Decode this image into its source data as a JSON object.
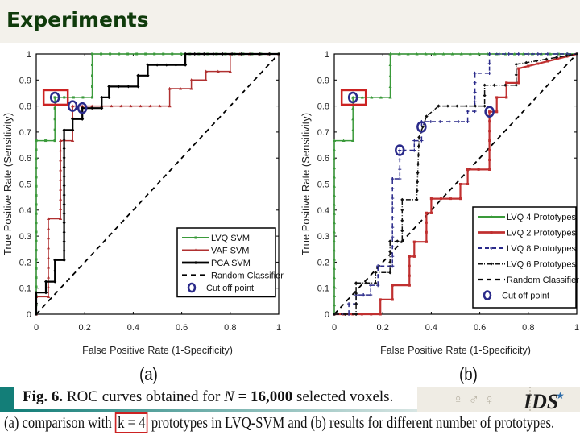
{
  "slide": {
    "title": "Experiments",
    "panel_labels": [
      "(a)",
      "(b)"
    ],
    "caption": {
      "line1_bold": "Fig. 6.",
      "line1_rest": " ROC curves obtained for ",
      "line1_var": "N",
      "line1_eq": " = ",
      "line1_num": "16,000",
      "line1_end": " selected voxels.",
      "line2_pre": "(a) comparison with ",
      "line2_highlight": "k = 4",
      "line2_post": " prototypes in LVQ-SVM and (b) results for different number of prototypes."
    },
    "logo_text": "IDS",
    "highlight_color": "#cc2222",
    "title_color": "#0f3b0b",
    "accent_teal": "#137e78"
  },
  "chart_data": [
    {
      "type": "line",
      "panel": "(a)",
      "title": "",
      "xlabel": "False Positive Rate (1-Specificity)",
      "ylabel": "True Positive Rate (Sensitivity)",
      "xlim": [
        0,
        1
      ],
      "ylim": [
        0,
        1
      ],
      "xticks": [
        "0",
        "0.2",
        "0.4",
        "0.6",
        "0.8",
        "1"
      ],
      "yticks": [
        "0",
        "0.1",
        "0.2",
        "0.3",
        "0.4",
        "0.5",
        "0.6",
        "0.7",
        "0.8",
        "0.9",
        "1"
      ],
      "grid": false,
      "legend_position": "lower right",
      "series": [
        {
          "name": "LVQ SVM",
          "color": "#3a9a3a",
          "width": 1.5,
          "dash": "",
          "marker": "square",
          "x": [
            0,
            0,
            0.077,
            0.077,
            0.231,
            0.231,
            1
          ],
          "y": [
            0,
            0.667,
            0.667,
            0.833,
            0.833,
            1,
            1
          ]
        },
        {
          "name": "VAF SVM",
          "color": "#b03030",
          "width": 1.5,
          "dash": "",
          "marker": "triangle",
          "x": [
            0,
            0,
            0.05,
            0.05,
            0.1,
            0.1,
            0.15,
            0.15,
            0.55,
            0.55,
            0.64,
            0.64,
            0.7,
            0.7,
            0.8,
            0.8,
            1
          ],
          "y": [
            0,
            0.067,
            0.067,
            0.367,
            0.367,
            0.667,
            0.667,
            0.8,
            0.8,
            0.867,
            0.867,
            0.9,
            0.9,
            0.933,
            0.933,
            1,
            1
          ]
        },
        {
          "name": "PCA SVM",
          "color": "#000000",
          "width": 2.2,
          "dash": "",
          "marker": "diamond",
          "x": [
            0,
            0,
            0.04,
            0.04,
            0.077,
            0.077,
            0.115,
            0.115,
            0.15,
            0.15,
            0.19,
            0.19,
            0.27,
            0.27,
            0.3,
            0.3,
            0.42,
            0.42,
            0.46,
            0.46,
            0.615,
            0.615,
            1
          ],
          "y": [
            0,
            0.083,
            0.083,
            0.125,
            0.125,
            0.208,
            0.208,
            0.708,
            0.708,
            0.75,
            0.75,
            0.792,
            0.792,
            0.833,
            0.833,
            0.875,
            0.875,
            0.917,
            0.917,
            0.958,
            0.958,
            1,
            1
          ]
        },
        {
          "name": "Random Classifier",
          "color": "#000000",
          "width": 1.8,
          "dash": "6,5",
          "marker": "none",
          "x": [
            0,
            1
          ],
          "y": [
            0,
            1
          ]
        }
      ],
      "cutoff_points": [
        {
          "x": 0.077,
          "y": 0.833,
          "highlighted": true
        },
        {
          "x": 0.15,
          "y": 0.8
        },
        {
          "x": 0.19,
          "y": 0.792
        }
      ],
      "cutoff_label": "Cut off point"
    },
    {
      "type": "line",
      "panel": "(b)",
      "title": "",
      "xlabel": "False Positive Rate (1-Specificity)",
      "ylabel": "True Positive Rate (Sensitivity)",
      "xlim": [
        0,
        1
      ],
      "ylim": [
        0,
        1
      ],
      "xticks": [
        "0",
        "0.2",
        "0.4",
        "0.6",
        "0.8",
        "1"
      ],
      "yticks": [
        "0",
        "0.1",
        "0.2",
        "0.3",
        "0.4",
        "0.5",
        "0.6",
        "0.7",
        "0.8",
        "0.9",
        "1"
      ],
      "grid": false,
      "legend_position": "lower right",
      "series": [
        {
          "name": "LVQ 4 Prototypes",
          "color": "#3a9a3a",
          "width": 1.5,
          "dash": "",
          "marker": "triangle",
          "x": [
            0,
            0,
            0.077,
            0.077,
            0.231,
            0.231,
            1
          ],
          "y": [
            0,
            0.667,
            0.667,
            0.833,
            0.833,
            1,
            1
          ]
        },
        {
          "name": "LVQ 2 Prototypes",
          "color": "#c03030",
          "width": 2.2,
          "dash": "",
          "marker": "square",
          "x": [
            0,
            0.19,
            0.19,
            0.24,
            0.24,
            0.31,
            0.31,
            0.33,
            0.33,
            0.38,
            0.38,
            0.4,
            0.4,
            0.52,
            0.52,
            0.55,
            0.55,
            0.64,
            0.64,
            0.67,
            0.67,
            0.71,
            0.71,
            0.76,
            0.76,
            1
          ],
          "y": [
            0,
            0,
            0.056,
            0.056,
            0.111,
            0.111,
            0.222,
            0.222,
            0.278,
            0.278,
            0.389,
            0.389,
            0.444,
            0.444,
            0.5,
            0.5,
            0.556,
            0.556,
            0.778,
            0.778,
            0.833,
            0.833,
            0.889,
            0.889,
            0.944,
            1
          ]
        },
        {
          "name": "LVQ 8 Prototypes",
          "color": "#2a2a8a",
          "width": 1.5,
          "dash": "5,4",
          "marker": "plus",
          "x": [
            0,
            0.06,
            0.06,
            0.09,
            0.09,
            0.12,
            0.12,
            0.15,
            0.15,
            0.18,
            0.18,
            0.24,
            0.24,
            0.24,
            0.24,
            0.27,
            0.27,
            0.33,
            0.33,
            0.36,
            0.36,
            0.55,
            0.55,
            0.58,
            0.58,
            0.64,
            0.64,
            1
          ],
          "y": [
            0,
            0,
            0.04,
            0.04,
            0.074,
            0.074,
            0.074,
            0.074,
            0.111,
            0.111,
            0.185,
            0.185,
            0.52,
            0.52,
            0.52,
            0.52,
            0.63,
            0.63,
            0.667,
            0.667,
            0.74,
            0.74,
            0.78,
            0.78,
            0.926,
            0.926,
            1,
            1
          ]
        },
        {
          "name": "LVQ 6 Prototypes",
          "color": "#111111",
          "width": 1.5,
          "dash": "6,2,1,2",
          "marker": "diamond",
          "x": [
            0,
            0.09,
            0.09,
            0.17,
            0.17,
            0.23,
            0.23,
            0.26,
            0.26,
            0.28,
            0.28,
            0.34,
            0.34,
            0.35,
            0.35,
            0.38,
            0.38,
            0.43,
            0.43,
            0.62,
            0.62,
            0.66,
            0.66,
            0.75,
            0.75,
            1
          ],
          "y": [
            0,
            0,
            0.12,
            0.12,
            0.16,
            0.16,
            0.28,
            0.28,
            0.28,
            0.28,
            0.44,
            0.44,
            0.44,
            0.68,
            0.68,
            0.76,
            0.76,
            0.8,
            0.8,
            0.8,
            0.88,
            0.88,
            0.88,
            0.88,
            0.96,
            1
          ]
        },
        {
          "name": "Random Classifier",
          "color": "#000000",
          "width": 1.8,
          "dash": "6,5",
          "marker": "none",
          "x": [
            0,
            1
          ],
          "y": [
            0,
            1
          ]
        }
      ],
      "cutoff_points": [
        {
          "x": 0.077,
          "y": 0.833,
          "highlighted": true
        },
        {
          "x": 0.27,
          "y": 0.63
        },
        {
          "x": 0.36,
          "y": 0.72
        },
        {
          "x": 0.64,
          "y": 0.778
        }
      ],
      "cutoff_label": "Cut off point"
    }
  ]
}
